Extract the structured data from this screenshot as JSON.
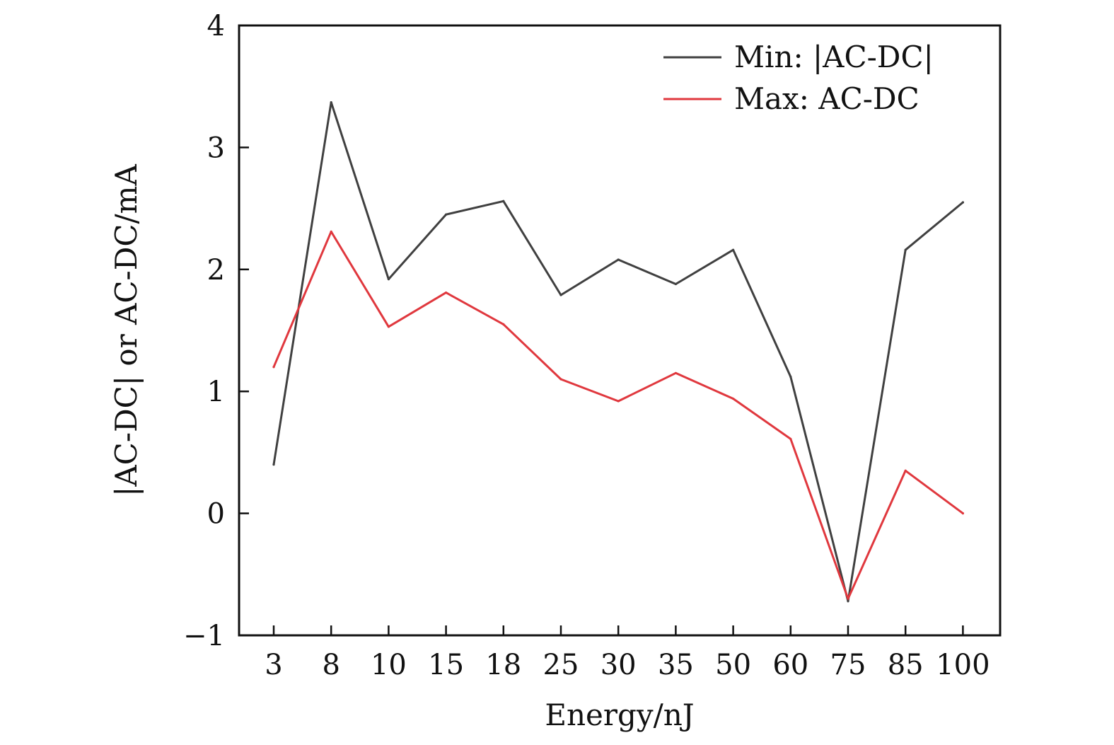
{
  "chart_data": {
    "type": "line",
    "title": "",
    "xlabel": "Energy/nJ",
    "ylabel": "|AC-DC| or AC-DC/mA",
    "categories": [
      "3",
      "8",
      "10",
      "15",
      "18",
      "25",
      "30",
      "35",
      "50",
      "60",
      "75",
      "85",
      "100"
    ],
    "ylim": [
      -1,
      4
    ],
    "yticks": [
      -1,
      0,
      1,
      2,
      3,
      4
    ],
    "ytick_labels": [
      "−1",
      "0",
      "1",
      "2",
      "3",
      "4"
    ],
    "grid": false,
    "legend_position": "top-right",
    "series": [
      {
        "name": "Min: |AC-DC|",
        "color": "#404040",
        "values": [
          0.4,
          3.37,
          1.92,
          2.45,
          2.56,
          1.79,
          2.08,
          1.88,
          2.16,
          1.12,
          -0.72,
          2.16,
          2.55
        ]
      },
      {
        "name": "Max: AC-DC",
        "color": "#e0383e",
        "values": [
          1.2,
          2.31,
          1.53,
          1.81,
          1.55,
          1.1,
          0.92,
          1.15,
          0.94,
          0.61,
          -0.7,
          0.35,
          0.0
        ]
      }
    ]
  }
}
